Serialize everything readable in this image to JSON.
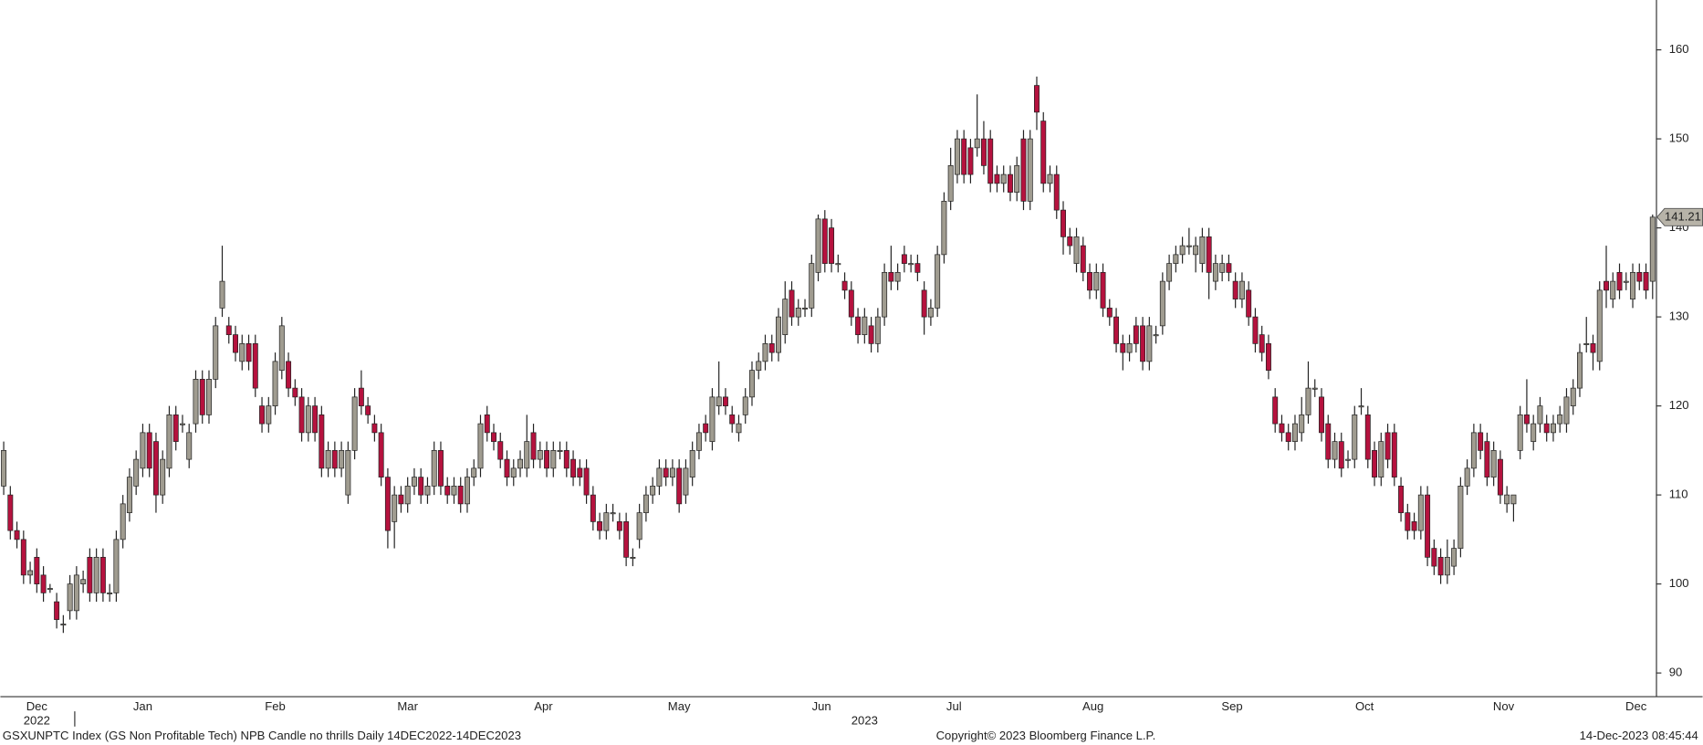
{
  "chart_data": {
    "type": "candlestick",
    "title": "GSXUNPTC Index (GS Non Profitable Tech) NPB Candle no thrills  Daily 14DEC2022-14DEC2023",
    "source": "Copyright© 2023 Bloomberg Finance L.P.",
    "timestamp": "14-Dec-2023 08:45:44",
    "up_color": "#a09c90",
    "down_color": "#b5123e",
    "last_value": 141.21,
    "ylim": [
      87.4,
      165.6
    ],
    "yticks": [
      90,
      100,
      110,
      120,
      130,
      140,
      150,
      160
    ],
    "xlim": [
      0,
      250
    ],
    "xticks": [
      {
        "value": 5.5,
        "label": "Dec"
      },
      {
        "value": 21.5,
        "label": "Jan"
      },
      {
        "value": 41.5,
        "label": "Feb"
      },
      {
        "value": 61.5,
        "label": "Mar"
      },
      {
        "value": 82,
        "label": "Apr"
      },
      {
        "value": 102.5,
        "label": "May"
      },
      {
        "value": 124,
        "label": "Jun"
      },
      {
        "value": 144,
        "label": "Jul"
      },
      {
        "value": 165,
        "label": "Aug"
      },
      {
        "value": 186,
        "label": "Sep"
      },
      {
        "value": 206,
        "label": "Oct"
      },
      {
        "value": 227,
        "label": "Nov"
      },
      {
        "value": 247,
        "label": "Dec"
      }
    ],
    "year_ticks": [
      {
        "value": 5.5,
        "label": "2022"
      },
      {
        "value": 130.5,
        "label": "2023"
      }
    ],
    "open": [
      111,
      110,
      106,
      105,
      101,
      103,
      101,
      99.5,
      98,
      95.5,
      97,
      97,
      100,
      103,
      99,
      103,
      99,
      99,
      105,
      108,
      111,
      113,
      117,
      116,
      110,
      113,
      119,
      118,
      114,
      118,
      123,
      119,
      123,
      131,
      129,
      128,
      125,
      127,
      127,
      120,
      118,
      120,
      124,
      125,
      122,
      121,
      117,
      120,
      119,
      113,
      115,
      113,
      110,
      115,
      122,
      120,
      118,
      117,
      112,
      107,
      110,
      109,
      111,
      112,
      110,
      111,
      115,
      111,
      110,
      111,
      109,
      112,
      113,
      119,
      117,
      116,
      114,
      112,
      113,
      113,
      117,
      114,
      115,
      113,
      115,
      115,
      114,
      113,
      113,
      110,
      107,
      106,
      108,
      107,
      107,
      103,
      105,
      108,
      110,
      111,
      113,
      112,
      113,
      110,
      112,
      115,
      118,
      116,
      120,
      121,
      119,
      117,
      119,
      121,
      124,
      125,
      127,
      126,
      128,
      133,
      130,
      131,
      131,
      135,
      141,
      140,
      136,
      134,
      133,
      130,
      128,
      129,
      127,
      130,
      135,
      134,
      137,
      136,
      136,
      133,
      130,
      131,
      137,
      143,
      146,
      150,
      149,
      149,
      150,
      150,
      146,
      145,
      146,
      144,
      150,
      143,
      156,
      152,
      145,
      146,
      142,
      139,
      136,
      138,
      135,
      133,
      135,
      131,
      130,
      127,
      126,
      129,
      129,
      125,
      128,
      129,
      134,
      136,
      137,
      138,
      137,
      136,
      139,
      134,
      135,
      136,
      134,
      132,
      133,
      130,
      128,
      127,
      121,
      118,
      117,
      116,
      117,
      119,
      122,
      121,
      118,
      114,
      116,
      114,
      114,
      120,
      119,
      115,
      112,
      117,
      117,
      111,
      108,
      107,
      106,
      110,
      104,
      103,
      101,
      102,
      104,
      111,
      113,
      117,
      116,
      112,
      114,
      109,
      109,
      115,
      119,
      116,
      118,
      118,
      117,
      118,
      118,
      120,
      122,
      127,
      127,
      125,
      134,
      132,
      135,
      134,
      132,
      135,
      135,
      134
    ],
    "high": [
      116,
      111,
      107,
      106,
      102.5,
      104,
      102,
      100,
      99,
      96.5,
      101,
      102,
      101.5,
      104,
      104,
      104,
      100,
      106,
      110,
      113,
      115,
      118,
      118,
      117,
      115,
      120,
      120,
      119,
      118,
      124,
      124,
      124,
      130,
      138,
      130,
      129,
      128,
      128,
      128,
      121,
      121,
      126,
      130,
      126,
      123,
      122,
      121,
      121,
      120,
      116,
      116,
      116,
      116,
      122,
      124,
      121,
      119,
      118,
      113,
      111,
      111,
      112,
      113,
      113,
      112,
      116,
      116,
      112,
      112,
      112,
      113,
      114,
      119,
      120,
      118,
      117,
      115,
      114,
      115,
      119,
      118,
      116,
      116,
      116,
      116,
      116,
      115,
      114,
      114,
      111,
      108,
      109,
      109,
      108,
      108,
      104,
      109,
      111,
      112,
      114,
      114,
      114,
      114,
      114,
      116,
      118,
      119,
      122,
      125,
      122,
      120,
      119,
      122,
      125,
      126,
      128,
      128,
      131,
      134,
      134,
      132,
      132,
      137,
      141.5,
      142,
      141,
      137,
      135,
      134,
      131,
      131,
      130,
      131,
      136,
      138,
      136,
      138,
      137,
      137,
      134,
      132,
      138,
      144,
      149,
      151,
      151,
      150,
      155,
      152,
      151,
      147,
      147,
      147,
      148,
      151,
      151,
      157,
      153,
      147,
      147,
      143,
      140,
      140,
      139,
      136,
      136,
      136,
      132,
      131,
      128,
      128,
      130,
      130,
      130,
      129,
      135,
      137,
      138,
      139,
      140,
      139,
      140,
      140,
      137,
      137,
      137,
      135,
      135,
      134,
      131,
      129,
      128,
      122,
      119,
      118,
      119,
      121,
      125,
      123,
      122,
      119,
      117,
      117,
      115,
      120,
      122,
      120,
      116,
      117,
      118,
      118,
      112,
      109,
      108,
      111,
      111,
      105,
      104,
      105,
      105,
      112,
      114,
      118,
      118,
      117,
      116,
      115,
      111,
      110,
      120,
      123,
      119,
      121,
      119,
      119,
      120,
      122,
      123,
      127,
      130,
      128,
      134,
      138,
      135,
      136,
      135,
      136,
      136,
      136,
      141.5
    ],
    "low": [
      110,
      105,
      104,
      100,
      100,
      99,
      98,
      99,
      95,
      94.5,
      96,
      96,
      99,
      98,
      98,
      98,
      98,
      98,
      104,
      107,
      110,
      112,
      112,
      108,
      109,
      112,
      115,
      117,
      113,
      117,
      118,
      118,
      122,
      130,
      127,
      125,
      124,
      124,
      121,
      117,
      117,
      119,
      123,
      121,
      120,
      116,
      116,
      116,
      112,
      112,
      112,
      112,
      109,
      114,
      119,
      118,
      116,
      111,
      104,
      104,
      108,
      108,
      110,
      109,
      109,
      110,
      110,
      109,
      109,
      108,
      108,
      111,
      112,
      116,
      115,
      113,
      111,
      111,
      112,
      112,
      113,
      113,
      112,
      112,
      114,
      112,
      111,
      111,
      109,
      106,
      105,
      105,
      107,
      105,
      102,
      102,
      104,
      107,
      109,
      110,
      111,
      111,
      108,
      109,
      111,
      114,
      116,
      115,
      119,
      119,
      117,
      116,
      118,
      120,
      123,
      124,
      125,
      125,
      127,
      129,
      129,
      130,
      130,
      134,
      135,
      135,
      135,
      132,
      129,
      127,
      127,
      126,
      126,
      129,
      133,
      133,
      135,
      135,
      134,
      128,
      129,
      130,
      136,
      142,
      145,
      145,
      145,
      148,
      146,
      144,
      144,
      144,
      143,
      143,
      142,
      142,
      151,
      144,
      144,
      141,
      137,
      137,
      135,
      134,
      132,
      132,
      130,
      129,
      126,
      124,
      125,
      126,
      124,
      124,
      127,
      128,
      133,
      135,
      136,
      137,
      135,
      135,
      132,
      133,
      134,
      134,
      131,
      131,
      129,
      126,
      125,
      123,
      117,
      116,
      115,
      115,
      116,
      118,
      121,
      116,
      113,
      113,
      112,
      113,
      113,
      119,
      113,
      111,
      111,
      113,
      111,
      107,
      105,
      105,
      105,
      102,
      101,
      100,
      100,
      101,
      103,
      110,
      112,
      114,
      111,
      111,
      109,
      108,
      107,
      114,
      117,
      115,
      117,
      116,
      116,
      117,
      117,
      119,
      121,
      126,
      124,
      124,
      131,
      131,
      132,
      133,
      131,
      133,
      132,
      132
    ],
    "close": [
      115,
      106,
      105,
      101,
      101.5,
      100,
      99,
      99.5,
      96,
      95.5,
      100,
      101,
      100.5,
      99,
      103,
      99,
      99,
      105,
      109,
      112,
      114,
      117,
      113,
      110,
      114,
      119,
      116,
      118,
      117,
      123,
      119,
      123,
      129,
      134,
      128,
      126,
      127,
      125,
      122,
      118,
      120,
      125,
      129,
      122,
      121,
      117,
      120,
      117,
      113,
      115,
      113,
      115,
      115,
      121,
      120,
      119,
      117,
      112,
      106,
      110,
      109,
      111,
      112,
      110,
      111,
      115,
      111,
      110,
      111,
      109,
      112,
      113,
      118,
      117,
      116,
      114,
      112,
      113,
      114,
      116,
      114,
      115,
      113,
      115,
      115,
      113,
      112,
      112,
      110,
      107,
      106,
      108,
      108,
      106,
      103,
      103,
      108,
      110,
      111,
      113,
      112,
      113,
      109,
      113,
      115,
      117,
      117,
      121,
      121,
      120,
      118,
      118,
      121,
      124,
      125,
      127,
      126,
      130,
      132,
      130,
      131,
      131,
      136,
      141,
      136,
      136,
      136,
      133,
      130,
      128,
      130,
      127,
      130,
      135,
      134,
      135,
      136,
      136,
      135,
      130,
      131,
      137,
      143,
      147,
      150,
      146,
      146,
      150,
      147,
      145,
      145,
      146,
      144,
      147,
      143,
      150,
      153,
      145,
      146,
      142,
      139,
      138,
      139,
      135,
      133,
      135,
      131,
      130,
      127,
      126,
      127,
      127,
      125,
      129,
      128,
      134,
      136,
      137,
      138,
      138,
      138,
      139,
      135,
      136,
      136,
      135,
      132,
      134,
      130,
      127,
      126,
      124,
      118,
      117,
      116,
      118,
      119,
      122,
      122,
      117,
      114,
      116,
      113,
      114,
      119,
      120,
      114,
      112,
      116,
      114,
      112,
      108,
      106,
      106,
      110,
      103,
      102,
      101,
      103,
      104,
      111,
      113,
      117,
      115,
      112,
      115,
      110,
      110,
      110,
      119,
      118,
      118,
      120,
      117,
      118,
      119,
      121,
      122,
      126,
      127,
      126,
      133,
      133,
      134,
      133,
      134,
      135,
      134,
      133,
      141.21
    ]
  }
}
